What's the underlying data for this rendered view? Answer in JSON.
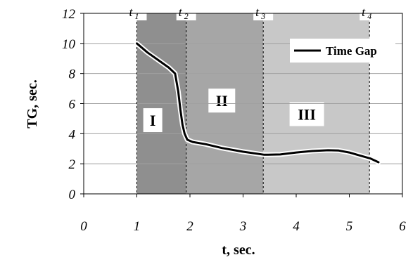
{
  "chart_data": {
    "type": "line",
    "xlabel": "t, sec.",
    "ylabel": "TG, sec.",
    "xlim": [
      0,
      6
    ],
    "ylim": [
      0,
      12
    ],
    "x_ticks": [
      "0",
      "1",
      "2",
      "3",
      "4",
      "5",
      "6"
    ],
    "y_ticks": [
      "0",
      "2",
      "4",
      "6",
      "8",
      "10",
      "12"
    ],
    "grid": "horizontal",
    "legend": "top-right",
    "series": [
      {
        "name": "Time Gap",
        "x": [
          1.0,
          1.2,
          1.4,
          1.6,
          1.72,
          1.78,
          1.82,
          1.86,
          1.9,
          1.95,
          2.05,
          2.3,
          2.6,
          3.0,
          3.4,
          3.7,
          4.0,
          4.3,
          4.6,
          4.8,
          5.0,
          5.2,
          5.4,
          5.55
        ],
        "y": [
          10.0,
          9.4,
          8.9,
          8.4,
          8.0,
          6.8,
          5.6,
          4.6,
          4.0,
          3.6,
          3.45,
          3.3,
          3.05,
          2.8,
          2.6,
          2.62,
          2.75,
          2.85,
          2.9,
          2.88,
          2.75,
          2.55,
          2.35,
          2.1
        ]
      }
    ],
    "time_markers": [
      {
        "label": "t",
        "sub": "1",
        "x": 1.0
      },
      {
        "label": "t",
        "sub": "2",
        "x": 1.93
      },
      {
        "label": "t",
        "sub": "3",
        "x": 3.38
      },
      {
        "label": "t",
        "sub": "4",
        "x": 5.38
      }
    ],
    "regions": [
      {
        "label": "I",
        "x0": 1.0,
        "x1": 1.93,
        "color": "#8f8f8f",
        "label_x": 1.3,
        "label_y": 4.9
      },
      {
        "label": "II",
        "x0": 1.93,
        "x1": 3.38,
        "color": "#a6a6a6",
        "label_x": 2.6,
        "label_y": 6.2
      },
      {
        "label": "III",
        "x0": 3.38,
        "x1": 5.38,
        "color": "#c8c8c8",
        "label_x": 4.2,
        "label_y": 5.3
      }
    ]
  }
}
